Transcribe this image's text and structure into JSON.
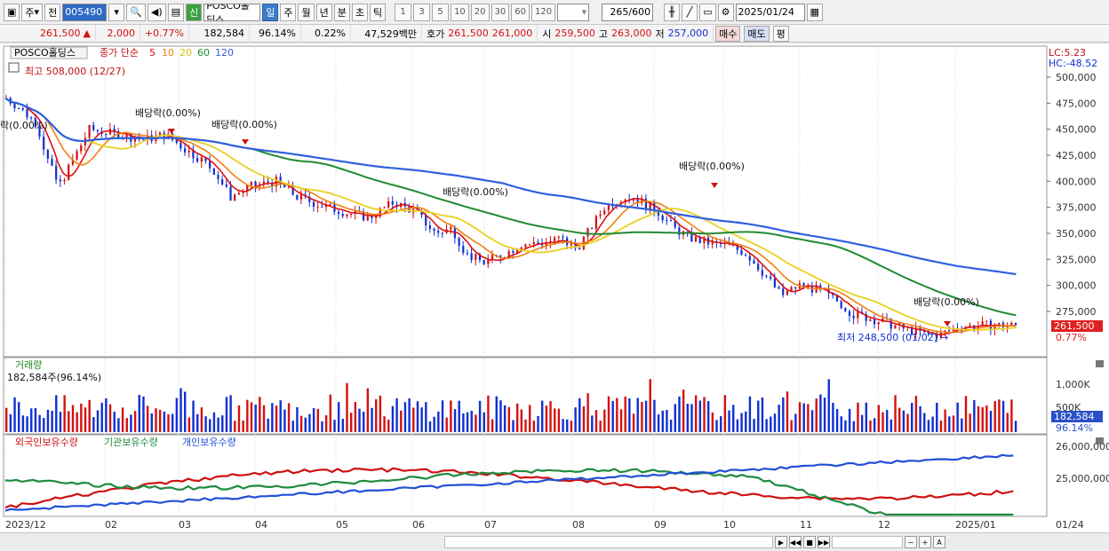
{
  "toolbar": {
    "period_label": "주",
    "prev_label": "전",
    "stock_code": "005490",
    "stock_name": "POSCO홀딩스",
    "new_badge": "신",
    "timeframes": [
      "일",
      "주",
      "월",
      "년",
      "분",
      "초",
      "틱"
    ],
    "active_timeframe": "일",
    "intervals": [
      "1",
      "3",
      "5",
      "10",
      "20",
      "30",
      "60",
      "120"
    ],
    "count_value": "265",
    "count_total": "/600",
    "date_value": "2025/01/24"
  },
  "quote": {
    "price": "261,500",
    "change_arrow": "▲",
    "change": "2,000",
    "change_pct": "+0.77%",
    "volume": "182,584",
    "volume_ratio": "96.14%",
    "turnover_rate": "0.22%",
    "amount": "47,529백만",
    "bid_label": "호가",
    "ask_price": "261,500",
    "bid_price": "261,000",
    "open_label": "시",
    "open": "259,500",
    "high_label": "고",
    "high": "263,000",
    "low_label": "저",
    "low": "257,000",
    "buy_button": "매수",
    "sell_button": "매도",
    "eval_button": "평"
  },
  "price_panel": {
    "stock_label": "POSCO홀딩스",
    "ma_legend_prefix": "종가 단순",
    "ma_periods": [
      {
        "label": "5",
        "color": "#e01010"
      },
      {
        "label": "10",
        "color": "#f08010"
      },
      {
        "label": "20",
        "color": "#e8d020"
      },
      {
        "label": "60",
        "color": "#208a30"
      },
      {
        "label": "120",
        "color": "#3060e0"
      }
    ],
    "high_marker": "최고 508,000 (12/27)",
    "low_marker": "최저 248,500 (01/02)",
    "lc_label": "LC:5.23",
    "hc_label": "HC:-48.52",
    "current_price_tag": "261,500",
    "current_change_tag": "0.77%",
    "dividend_labels": [
      "락(0.00%)",
      "배당락(0.00%)",
      "배당락(0.00%)",
      "배당락(0.00%)",
      "배당락(0.00%)",
      "배당락(0.00%)"
    ],
    "y_ticks": [
      "500,000",
      "475,000",
      "450,000",
      "425,000",
      "400,000",
      "375,000",
      "350,000",
      "325,000",
      "300,000",
      "275,000"
    ]
  },
  "volume_panel": {
    "title": "거래량",
    "value_label": "182,584주(96.14%)",
    "y_ticks": [
      "1,000K",
      "500K"
    ],
    "current_tag": "182,584",
    "current_ratio_tag": "96.14%"
  },
  "holdings_panel": {
    "legend": [
      {
        "label": "외국인보유수량",
        "color": "#d01010"
      },
      {
        "label": "기관보유수량",
        "color": "#208a40"
      },
      {
        "label": "개인보유수량",
        "color": "#2050d8"
      }
    ],
    "y_ticks": [
      "26,000,000",
      "25,000,000"
    ]
  },
  "x_axis": {
    "labels": [
      "2023/12",
      "02",
      "03",
      "04",
      "05",
      "06",
      "07",
      "08",
      "09",
      "10",
      "11",
      "12",
      "2025/01"
    ],
    "right_label": "01/24"
  },
  "colors": {
    "up": "#d41010",
    "down": "#1030d0",
    "ma5": "#e01010",
    "ma10": "#f08010",
    "ma20": "#e8d020",
    "ma60": "#208a30",
    "ma120": "#3060e0"
  }
}
